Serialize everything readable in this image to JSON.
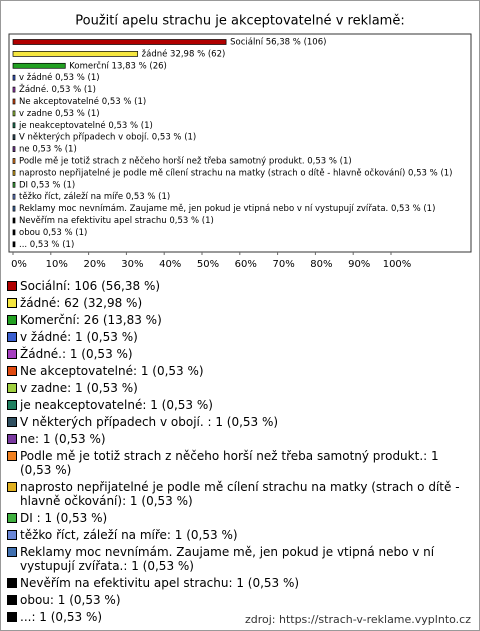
{
  "chart_data": {
    "type": "bar",
    "orientation": "horizontal",
    "title": "Použití apelu strachu je akceptovatelné v reklamě:",
    "values": [
      56.38,
      32.98,
      13.83,
      0.53,
      0.53,
      0.53,
      0.53,
      0.53,
      0.53,
      0.53,
      0.53,
      0.53,
      0.53,
      0.53,
      0.53,
      0.53,
      0.53,
      0.53
    ],
    "value_labels": [
      "Sociální 56,38 % (106)",
      "žádné 32,98 % (62)",
      "Komerční 13,83 % (26)",
      "v žádné 0,53 % (1)",
      "Žádné. 0,53 % (1)",
      "Ne akceptovatelné 0,53 % (1)",
      "v zadne 0,53 % (1)",
      "je neakceptovatelné 0,53 % (1)",
      "V některých případech v obojí.  0,53 % (1)",
      "ne 0,53 % (1)",
      "Podle mě je totiž strach z něčeho horší než třeba samotný produkt. 0,53 % (1)",
      "naprosto nepřijatelné je podle mě cílení strachu na matky (strach o dítě - hlavně očkování) 0,53 % (1)",
      "DI  0,53 % (1)",
      "těžko říct, záleží  na míře 0,53 % (1)",
      "Reklamy moc nevnímám. Zaujame mě, jen pokud je vtipná nebo v ní vystupují zvířata. 0,53 % (1)",
      "Nevěřím na efektivitu apel strachu 0,53 % (1)",
      "obou 0,53 % (1)",
      "... 0,53 % (1)"
    ],
    "legend_labels": [
      "Sociální: 106 (56,38 %)",
      "žádné: 62 (32,98 %)",
      "Komerční: 26 (13,83 %)",
      "v žádné: 1 (0,53 %)",
      "Žádné.: 1 (0,53 %)",
      "Ne akceptovatelné: 1 (0,53 %)",
      "v zadne: 1 (0,53 %)",
      "je neakceptovatelné: 1 (0,53 %)",
      "V některých případech v obojí. : 1 (0,53 %)",
      "ne: 1 (0,53 %)",
      "Podle mě je totiž strach z něčeho horší než třeba samotný produkt.: 1 (0,53 %)",
      "naprosto nepřijatelné je podle mě cílení strachu na matky (strach o dítě - hlavně očkování): 1 (0,53 %)",
      "DI : 1 (0,53 %)",
      "těžko říct, záleží  na míře: 1 (0,53 %)",
      "Reklamy moc nevnímám. Zaujame mě, jen pokud je vtipná nebo v ní vystupují zvířata.: 1 (0,53 %)",
      "Nevěřím na efektivitu apel strachu: 1 (0,53 %)",
      "obou: 1 (0,53 %)",
      "...: 1 (0,53 %)"
    ],
    "colors": [
      "#b00000",
      "#f5e640",
      "#22a022",
      "#3a5fd0",
      "#a640c0",
      "#e04a10",
      "#a0d040",
      "#208060",
      "#2f4f60",
      "#7a3aa0",
      "#f08020",
      "#e0b020",
      "#40b040",
      "#6a86d6",
      "#4070b0",
      "#000000",
      "#000000",
      "#000000"
    ],
    "xlim": [
      0,
      100
    ],
    "xticks": [
      {
        "value": 0,
        "label": "0%"
      },
      {
        "value": 10,
        "label": "10%"
      },
      {
        "value": 20,
        "label": "20%"
      },
      {
        "value": 30,
        "label": "30%"
      },
      {
        "value": 40,
        "label": "40%"
      },
      {
        "value": 50,
        "label": "50%"
      },
      {
        "value": 60,
        "label": "60%"
      },
      {
        "value": 70,
        "label": "70%"
      },
      {
        "value": 80,
        "label": "80%"
      },
      {
        "value": 90,
        "label": "90%"
      },
      {
        "value": 100,
        "label": "100%"
      }
    ],
    "source": "zdroj: https://strach-v-reklame.vyplnto.cz"
  }
}
